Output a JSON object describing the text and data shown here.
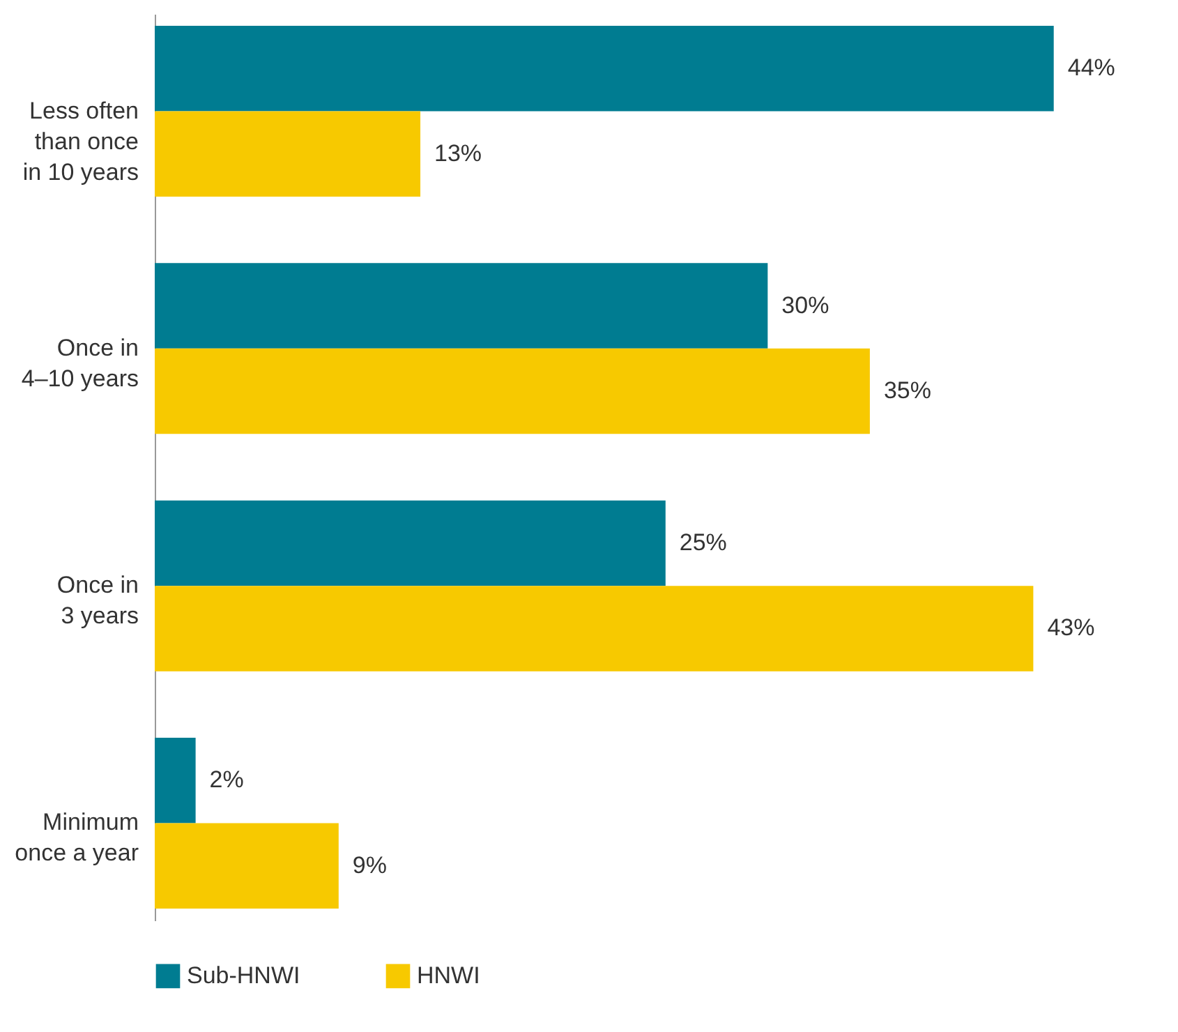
{
  "chart_data": {
    "type": "bar",
    "orientation": "horizontal",
    "categories": [
      "Less often\nthan once\nin 10 years",
      "Once in\n4–10 years",
      "Once in\n3 years",
      "Minimum\nonce a year"
    ],
    "series": [
      {
        "name": "Sub-HNWI",
        "color": "#007c91",
        "values": [
          44,
          30,
          25,
          2
        ],
        "value_labels": [
          "44%",
          "30%",
          "25%",
          "2%"
        ]
      },
      {
        "name": "HNWI",
        "color": "#f7c900",
        "values": [
          13,
          35,
          43,
          9
        ],
        "value_labels": [
          "13%",
          "35%",
          "43%",
          "9%"
        ]
      }
    ],
    "legend": "bottom",
    "tick_labels": "y"
  }
}
